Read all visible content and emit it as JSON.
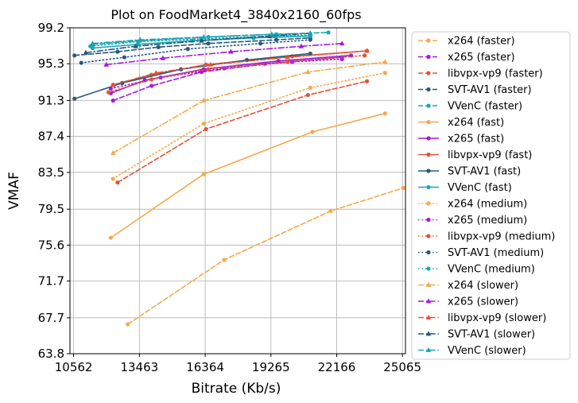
{
  "chart_data": {
    "type": "line",
    "title": "Plot on FoodMarket4_3840x2160_60fps",
    "xlabel": "Bitrate (Kb/s)",
    "ylabel": "VMAF",
    "xlim": [
      10400,
      25200
    ],
    "ylim": [
      63.8,
      99.2
    ],
    "xticks": [
      "10562",
      "13463",
      "16364",
      "19265",
      "22166",
      "25065"
    ],
    "yticks": [
      "63.8",
      "67.7",
      "71.7",
      "75.6",
      "79.5",
      "83.5",
      "87.4",
      "91.3",
      "95.3",
      "99.2"
    ],
    "grid": true,
    "legend_position": "right, outside plot",
    "series": [
      {
        "name": "x264 (faster)",
        "codec": "x264",
        "preset": "faster",
        "color": "#f5a94a",
        "x": [
          12950,
          17200,
          21900,
          25100
        ],
        "y": [
          67.0,
          74.0,
          79.3,
          81.8
        ]
      },
      {
        "name": "x265 (faster)",
        "codec": "x265",
        "preset": "faster",
        "color": "#a31ae0",
        "x": [
          12300,
          14000,
          16200,
          19000,
          22400
        ],
        "y": [
          91.3,
          92.9,
          94.4,
          95.3,
          96.0
        ]
      },
      {
        "name": "libvpx-vp9 (faster)",
        "codec": "libvpx-vp9",
        "preset": "faster",
        "color": "#e0543a",
        "x": [
          12500,
          16400,
          20900,
          23500
        ],
        "y": [
          82.4,
          88.2,
          91.9,
          93.4
        ]
      },
      {
        "name": "SVT-AV1 (faster)",
        "codec": "SVT-AV1",
        "preset": "faster",
        "color": "#28587a",
        "x": [
          10600,
          12500,
          14300,
          16500,
          19500,
          21000
        ],
        "y": [
          96.2,
          96.6,
          97.1,
          97.5,
          97.9,
          98.1
        ]
      },
      {
        "name": "VVenC (faster)",
        "codec": "VVenC",
        "preset": "faster",
        "color": "#1aa6b3",
        "x": [
          11400,
          13500,
          16500,
          19500,
          21800
        ],
        "y": [
          97.4,
          97.8,
          98.2,
          98.5,
          98.7
        ]
      },
      {
        "name": "x264 (fast)",
        "codec": "x264",
        "preset": "fast",
        "color": "#f5a94a",
        "x": [
          12200,
          16300,
          21100,
          24300
        ],
        "y": [
          76.4,
          83.3,
          87.9,
          89.9
        ]
      },
      {
        "name": "x265 (fast)",
        "codec": "x265",
        "preset": "fast",
        "color": "#a31ae0",
        "x": [
          12200,
          13700,
          16300,
          19600,
          22800
        ],
        "y": [
          92.1,
          93.5,
          94.7,
          95.6,
          96.2
        ]
      },
      {
        "name": "libvpx-vp9 (fast)",
        "codec": "libvpx-vp9",
        "preset": "fast",
        "color": "#e0543a",
        "x": [
          12300,
          14000,
          16400,
          20200,
          23500
        ],
        "y": [
          93.0,
          94.1,
          95.2,
          96.1,
          96.7
        ]
      },
      {
        "name": "SVT-AV1 (fast)",
        "codec": "SVT-AV1",
        "preset": "fast",
        "color": "#28587a",
        "x": [
          10600,
          12700,
          15300,
          18200,
          21000
        ],
        "y": [
          91.5,
          93.2,
          94.7,
          95.7,
          96.4
        ]
      },
      {
        "name": "VVenC (fast)",
        "codec": "VVenC",
        "preset": "fast",
        "color": "#1aa6b3",
        "x": [
          11400,
          13400,
          15800,
          18500,
          21000
        ],
        "y": [
          97.0,
          97.4,
          97.8,
          98.1,
          98.3
        ]
      },
      {
        "name": "x264 (medium)",
        "codec": "x264",
        "preset": "medium",
        "color": "#f5a94a",
        "x": [
          12300,
          16300,
          21000,
          24300
        ],
        "y": [
          82.8,
          88.8,
          92.7,
          94.3
        ]
      },
      {
        "name": "x265 (medium)",
        "codec": "x265",
        "preset": "medium",
        "color": "#a31ae0",
        "x": [
          12200,
          14400,
          17200,
          20200,
          22400
        ],
        "y": [
          92.6,
          93.8,
          94.8,
          95.5,
          95.8
        ]
      },
      {
        "name": "libvpx-vp9 (medium)",
        "codec": "libvpx-vp9",
        "preset": "medium",
        "color": "#e0543a",
        "x": [
          12100,
          14000,
          16500,
          20000,
          23400
        ],
        "y": [
          92.2,
          93.6,
          94.7,
          95.5,
          96.2
        ]
      },
      {
        "name": "SVT-AV1 (medium)",
        "codec": "SVT-AV1",
        "preset": "medium",
        "color": "#28587a",
        "x": [
          10900,
          12800,
          15600,
          18800,
          21000
        ],
        "y": [
          95.4,
          96.0,
          96.9,
          97.5,
          97.9
        ]
      },
      {
        "name": "VVenC (medium)",
        "codec": "VVenC",
        "preset": "medium",
        "color": "#1aa6b3",
        "x": [
          11300,
          13400,
          16200,
          19400,
          21000
        ],
        "y": [
          97.2,
          97.7,
          98.0,
          98.3,
          98.4
        ]
      },
      {
        "name": "x264 (slower)",
        "codec": "x264",
        "preset": "slower",
        "color": "#f5a94a",
        "x": [
          12300,
          16300,
          20900,
          24300
        ],
        "y": [
          85.6,
          91.3,
          94.4,
          95.5
        ]
      },
      {
        "name": "x265 (slower)",
        "codec": "x265",
        "preset": "slower",
        "color": "#a31ae0",
        "x": [
          12000,
          14500,
          17500,
          20600,
          22400
        ],
        "y": [
          95.2,
          95.9,
          96.6,
          97.2,
          97.5
        ]
      },
      {
        "name": "libvpx-vp9 (slower)",
        "codec": "libvpx-vp9",
        "preset": "slower",
        "color": "#e0543a",
        "x": [
          12300,
          14200,
          16600,
          20000,
          23500
        ],
        "y": [
          93.0,
          94.3,
          95.2,
          96.0,
          96.7
        ]
      },
      {
        "name": "SVT-AV1 (slower)",
        "codec": "SVT-AV1",
        "preset": "slower",
        "color": "#28587a",
        "x": [
          11100,
          13300,
          16200,
          19200,
          21000
        ],
        "y": [
          96.5,
          97.2,
          97.8,
          98.3,
          98.6
        ]
      },
      {
        "name": "VVenC (slower)",
        "codec": "VVenC",
        "preset": "slower",
        "color": "#1aa6b3",
        "x": [
          11400,
          13500,
          16300,
          19300,
          21000
        ],
        "y": [
          97.5,
          97.9,
          98.2,
          98.5,
          98.6
        ]
      }
    ],
    "preset_styles": {
      "faster": {
        "dash": "dashed",
        "marker": "circle"
      },
      "fast": {
        "dash": "solid",
        "marker": "circle"
      },
      "medium": {
        "dash": "dotted",
        "marker": "circle"
      },
      "slower": {
        "dash": "dashdot",
        "marker": "triangle"
      }
    }
  }
}
